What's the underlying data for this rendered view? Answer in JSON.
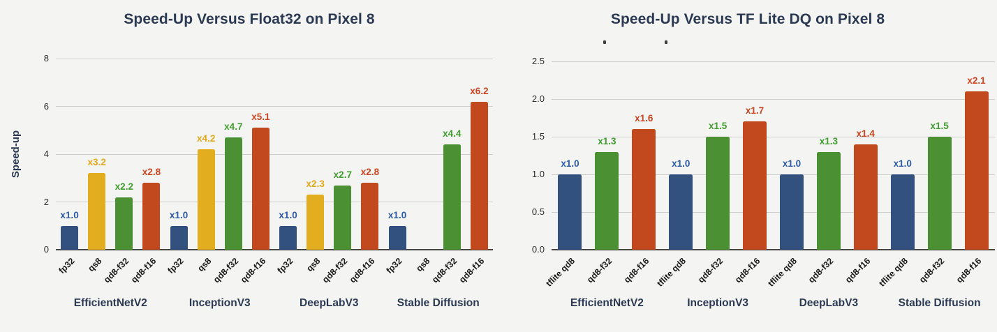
{
  "colors": {
    "background": "#f4f4f2",
    "heading": "#2b3a52",
    "grid": "#cdcdcd",
    "axis_line": "#454545",
    "ytick_text": "#2d2d2d",
    "xtick_text": "#1c1c1c",
    "bar_blue": "#33517e",
    "bar_yellow": "#e2ae20",
    "bar_green": "#4b9134",
    "bar_red": "#c2491d",
    "label_blue": "#2d5ba7",
    "label_yellow": "#e2a81c",
    "label_green": "#3f9e2f",
    "label_red": "#cc4521"
  },
  "chart_data": [
    {
      "type": "bar",
      "title": "Speed-Up Versus Float32 on Pixel 8",
      "xlabel": "",
      "ylabel": "Speed-up",
      "ylim": [
        0,
        8
      ],
      "yticks": [
        0,
        2,
        4,
        6,
        8
      ],
      "ytick_labels": [
        "0",
        "2",
        "4",
        "6",
        "8"
      ],
      "grid": true,
      "legend": "none",
      "categories": [
        "EfficientNetV2",
        "InceptionV3",
        "DeepLabV3",
        "Stable Diffusion"
      ],
      "bar_types": [
        "fp32",
        "qs8",
        "qd8-f32",
        "qd8-f16"
      ],
      "series": [
        {
          "name": "fp32",
          "color": "blue",
          "values": [
            1.0,
            1.0,
            1.0,
            1.0
          ],
          "labels": [
            "x1.0",
            "x1.0",
            "x1.0",
            "x1.0"
          ]
        },
        {
          "name": "qs8",
          "color": "yellow",
          "values": [
            3.2,
            4.2,
            2.3,
            null
          ],
          "labels": [
            "x3.2",
            "x4.2",
            "x2.3",
            ""
          ]
        },
        {
          "name": "qd8-f32",
          "color": "green",
          "values": [
            2.2,
            4.7,
            2.7,
            4.4
          ],
          "labels": [
            "x2.2",
            "x4.7",
            "x2.7",
            "x4.4"
          ]
        },
        {
          "name": "qd8-f16",
          "color": "red",
          "values": [
            2.8,
            5.1,
            2.8,
            6.2
          ],
          "labels": [
            "x2.8",
            "x5.1",
            "x2.8",
            "x6.2"
          ]
        }
      ]
    },
    {
      "type": "bar",
      "title": "Speed-Up Versus TF Lite DQ on Pixel 8",
      "xlabel": "",
      "ylabel": "",
      "ylim": [
        0,
        2.5
      ],
      "yticks": [
        0,
        0.5,
        1.0,
        1.5,
        2.0,
        2.5
      ],
      "ytick_labels": [
        "0.0",
        "0.5",
        "1.0",
        "1.5",
        "2.0",
        "2.5"
      ],
      "grid": true,
      "legend": "none",
      "subtitle_cropped": true,
      "categories": [
        "EfficientNetV2",
        "InceptionV3",
        "DeepLabV3",
        "Stable Diffusion"
      ],
      "bar_types": [
        "tflite qd8",
        "qd8-f32",
        "qd8-f16"
      ],
      "series": [
        {
          "name": "tflite qd8",
          "color": "blue",
          "values": [
            1.0,
            1.0,
            1.0,
            1.0
          ],
          "labels": [
            "x1.0",
            "x1.0",
            "x1.0",
            "x1.0"
          ]
        },
        {
          "name": "qd8-f32",
          "color": "green",
          "values": [
            1.3,
            1.5,
            1.3,
            1.5
          ],
          "labels": [
            "x1.3",
            "x1.5",
            "x1.3",
            "x1.5"
          ]
        },
        {
          "name": "qd8-f16",
          "color": "red",
          "values": [
            1.6,
            1.7,
            1.4,
            2.1
          ],
          "labels": [
            "x1.6",
            "x1.7",
            "x1.4",
            "x2.1"
          ]
        }
      ]
    }
  ]
}
